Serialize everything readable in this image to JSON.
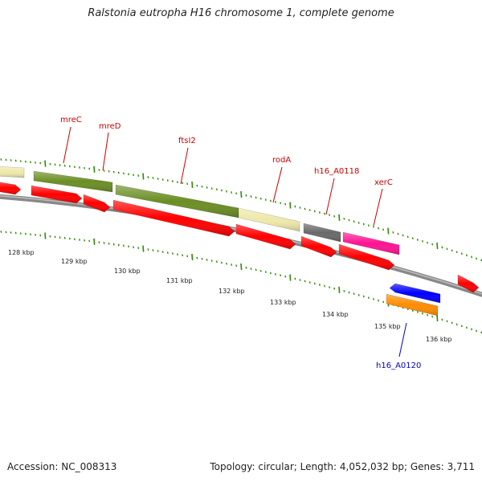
{
  "title": "Ralstonia eutropha H16 chromosome 1, complete genome",
  "footer": {
    "accession": "Accession: NC_008313",
    "summary": "Topology: circular; Length: 4,052,032 bp; Genes: 3,711"
  },
  "colors": {
    "backbone": "#888888",
    "tick": "#2e8b00",
    "label_red": "#cc0000",
    "label_blue": "#0000cc",
    "cds_red": "#ff0000",
    "olive": "#6b8e23",
    "pale_yellow": "#eee8aa",
    "gray": "#696969",
    "pink": "#ff1493",
    "blue": "#0000ff",
    "orange": "#ff8c00"
  },
  "scale_labels": [
    "128 kbp",
    "129 kbp",
    "130 kbp",
    "131 kbp",
    "132 kbp",
    "133 kbp",
    "134 kbp",
    "135 kbp",
    "136 kbp"
  ],
  "labels": [
    {
      "text": "mreC",
      "color": "label_red"
    },
    {
      "text": "mreD",
      "color": "label_red"
    },
    {
      "text": "ftsI2",
      "color": "label_red"
    },
    {
      "text": "rodA",
      "color": "label_red"
    },
    {
      "text": "h16_A0118",
      "color": "label_red"
    },
    {
      "text": "xerC",
      "color": "label_red"
    },
    {
      "text": "h16_A0120",
      "color": "label_blue"
    }
  ]
}
